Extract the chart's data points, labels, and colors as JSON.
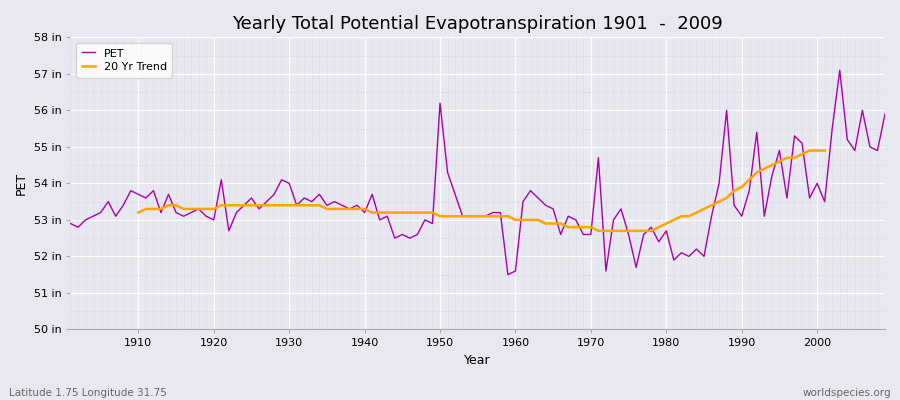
{
  "title": "Yearly Total Potential Evapotranspiration 1901  -  2009",
  "xlabel": "Year",
  "ylabel": "PET",
  "subtitle_left": "Latitude 1.75 Longitude 31.75",
  "subtitle_right": "worldspecies.org",
  "years": [
    1901,
    1902,
    1903,
    1904,
    1905,
    1906,
    1907,
    1908,
    1909,
    1910,
    1911,
    1912,
    1913,
    1914,
    1915,
    1916,
    1917,
    1918,
    1919,
    1920,
    1921,
    1922,
    1923,
    1924,
    1925,
    1926,
    1927,
    1928,
    1929,
    1930,
    1931,
    1932,
    1933,
    1934,
    1935,
    1936,
    1937,
    1938,
    1939,
    1940,
    1941,
    1942,
    1943,
    1944,
    1945,
    1946,
    1947,
    1948,
    1949,
    1950,
    1951,
    1952,
    1953,
    1954,
    1955,
    1956,
    1957,
    1958,
    1959,
    1960,
    1961,
    1962,
    1963,
    1964,
    1965,
    1966,
    1967,
    1968,
    1969,
    1970,
    1971,
    1972,
    1973,
    1974,
    1975,
    1976,
    1977,
    1978,
    1979,
    1980,
    1981,
    1982,
    1983,
    1984,
    1985,
    1986,
    1987,
    1988,
    1989,
    1990,
    1991,
    1992,
    1993,
    1994,
    1995,
    1996,
    1997,
    1998,
    1999,
    2000,
    2001,
    2002,
    2003,
    2004,
    2005,
    2006,
    2007,
    2008,
    2009
  ],
  "pet": [
    52.9,
    52.8,
    53.0,
    53.1,
    53.2,
    53.5,
    53.1,
    53.4,
    53.8,
    53.7,
    53.6,
    53.8,
    53.2,
    53.7,
    53.2,
    53.1,
    53.2,
    53.3,
    53.1,
    53.0,
    54.1,
    52.7,
    53.2,
    53.4,
    53.6,
    53.3,
    53.5,
    53.7,
    54.1,
    54.0,
    53.4,
    53.6,
    53.5,
    53.7,
    53.4,
    53.5,
    53.4,
    53.3,
    53.4,
    53.2,
    53.7,
    53.0,
    53.1,
    52.5,
    52.6,
    52.5,
    52.6,
    53.0,
    52.9,
    56.2,
    54.3,
    53.7,
    53.1,
    53.1,
    53.1,
    53.1,
    53.2,
    53.2,
    51.5,
    51.6,
    53.5,
    53.8,
    53.6,
    53.4,
    53.3,
    52.6,
    53.1,
    53.0,
    52.6,
    52.6,
    54.7,
    51.6,
    53.0,
    53.3,
    52.6,
    51.7,
    52.6,
    52.8,
    52.4,
    52.7,
    51.9,
    52.1,
    52.0,
    52.2,
    52.0,
    53.1,
    54.0,
    56.0,
    53.4,
    53.1,
    53.8,
    55.4,
    53.1,
    54.2,
    54.9,
    53.6,
    55.3,
    55.1,
    53.6,
    54.0,
    53.5,
    55.5,
    57.1,
    55.2,
    54.9,
    56.0,
    55.0,
    54.9,
    55.9
  ],
  "trend": [
    null,
    null,
    null,
    null,
    null,
    null,
    null,
    null,
    null,
    53.2,
    53.3,
    53.3,
    53.3,
    53.4,
    53.4,
    53.3,
    53.3,
    53.3,
    53.3,
    53.3,
    53.4,
    53.4,
    53.4,
    53.4,
    53.4,
    53.4,
    53.4,
    53.4,
    53.4,
    53.4,
    53.4,
    53.4,
    53.4,
    53.4,
    53.3,
    53.3,
    53.3,
    53.3,
    53.3,
    53.3,
    53.2,
    53.2,
    53.2,
    53.2,
    53.2,
    53.2,
    53.2,
    53.2,
    53.2,
    53.1,
    53.1,
    53.1,
    53.1,
    53.1,
    53.1,
    53.1,
    53.1,
    53.1,
    53.1,
    53.0,
    53.0,
    53.0,
    53.0,
    52.9,
    52.9,
    52.9,
    52.8,
    52.8,
    52.8,
    52.8,
    52.7,
    52.7,
    52.7,
    52.7,
    52.7,
    52.7,
    52.7,
    52.7,
    52.8,
    52.9,
    53.0,
    53.1,
    53.1,
    53.2,
    53.3,
    53.4,
    53.5,
    53.6,
    53.8,
    53.9,
    54.1,
    54.3,
    54.4,
    54.5,
    54.6,
    54.7,
    54.7,
    54.8,
    54.9,
    54.9,
    54.9,
    null,
    null,
    null,
    null,
    null,
    null,
    null
  ],
  "pet_color": "#aa00aa",
  "trend_color": "#ffa500",
  "bg_color": "#e8e8f0",
  "plot_bg_color": "#e8e8f0",
  "grid_color": "#ffffff",
  "minor_grid_color": "#d8d8e4",
  "ylim": [
    50,
    58
  ],
  "yticks": [
    50,
    51,
    52,
    53,
    54,
    55,
    56,
    57,
    58
  ],
  "ytick_labels": [
    "50 in",
    "51 in",
    "52 in",
    "53 in",
    "54 in",
    "55 in",
    "56 in",
    "57 in",
    "58 in"
  ],
  "xticks": [
    1910,
    1920,
    1930,
    1940,
    1950,
    1960,
    1970,
    1980,
    1990,
    2000
  ],
  "xlim": [
    1901,
    2009
  ],
  "legend_pet": "PET",
  "legend_trend": "20 Yr Trend",
  "title_fontsize": 13,
  "axis_label_fontsize": 9,
  "tick_fontsize": 8
}
